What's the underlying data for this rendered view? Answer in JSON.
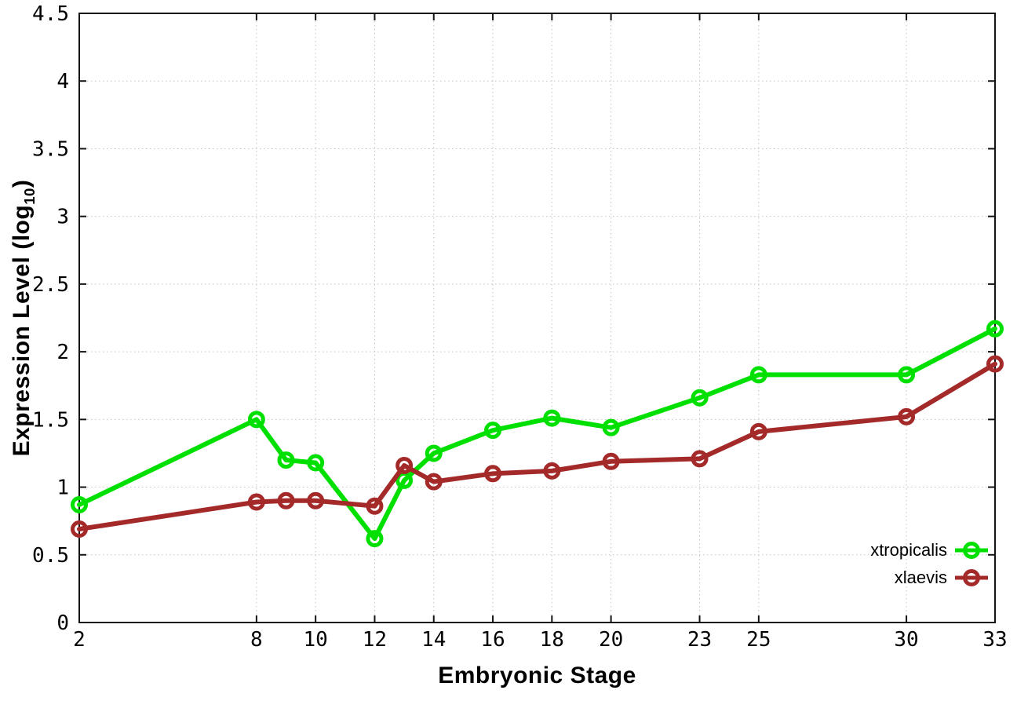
{
  "chart_data": {
    "type": "line",
    "title": "",
    "xlabel": "Embryonic Stage",
    "ylabel": "Expression Level (log10)",
    "ylabel_parts": {
      "text": "Expression Level (log",
      "sub": "10",
      "after": ")"
    },
    "x": [
      2,
      8,
      9,
      10,
      12,
      13,
      14,
      16,
      18,
      20,
      23,
      25,
      30,
      33
    ],
    "series": [
      {
        "name": "xtropicalis",
        "color": "#00e000",
        "marker": "open-circle",
        "values": [
          0.87,
          1.5,
          1.2,
          1.18,
          0.62,
          1.05,
          1.25,
          1.42,
          1.51,
          1.44,
          1.66,
          1.83,
          1.83,
          2.17
        ]
      },
      {
        "name": "xlaevis",
        "color": "#a42a2a",
        "marker": "open-circle",
        "values": [
          0.69,
          0.89,
          0.9,
          0.9,
          0.86,
          1.16,
          1.04,
          1.1,
          1.12,
          1.19,
          1.21,
          1.41,
          1.52,
          1.91
        ]
      }
    ],
    "xlim": [
      2,
      33
    ],
    "ylim": [
      0,
      4.5
    ],
    "x_ticks": [
      2,
      8,
      10,
      12,
      14,
      16,
      18,
      20,
      23,
      25,
      30,
      33
    ],
    "y_ticks": [
      0,
      0.5,
      1,
      1.5,
      2,
      2.5,
      3,
      3.5,
      4,
      4.5
    ],
    "y_tick_labels": [
      "0",
      "0.5",
      "1",
      "1.5",
      "2",
      "2.5",
      "3",
      "3.5",
      "4",
      "4.5"
    ],
    "grid": "dotted",
    "legend_position": "inside-bottom-right",
    "style": {
      "background": "#ffffff",
      "grid_color": "#c4c4c4",
      "axis_color": "#141414",
      "tick_label_color": "#000000"
    }
  }
}
